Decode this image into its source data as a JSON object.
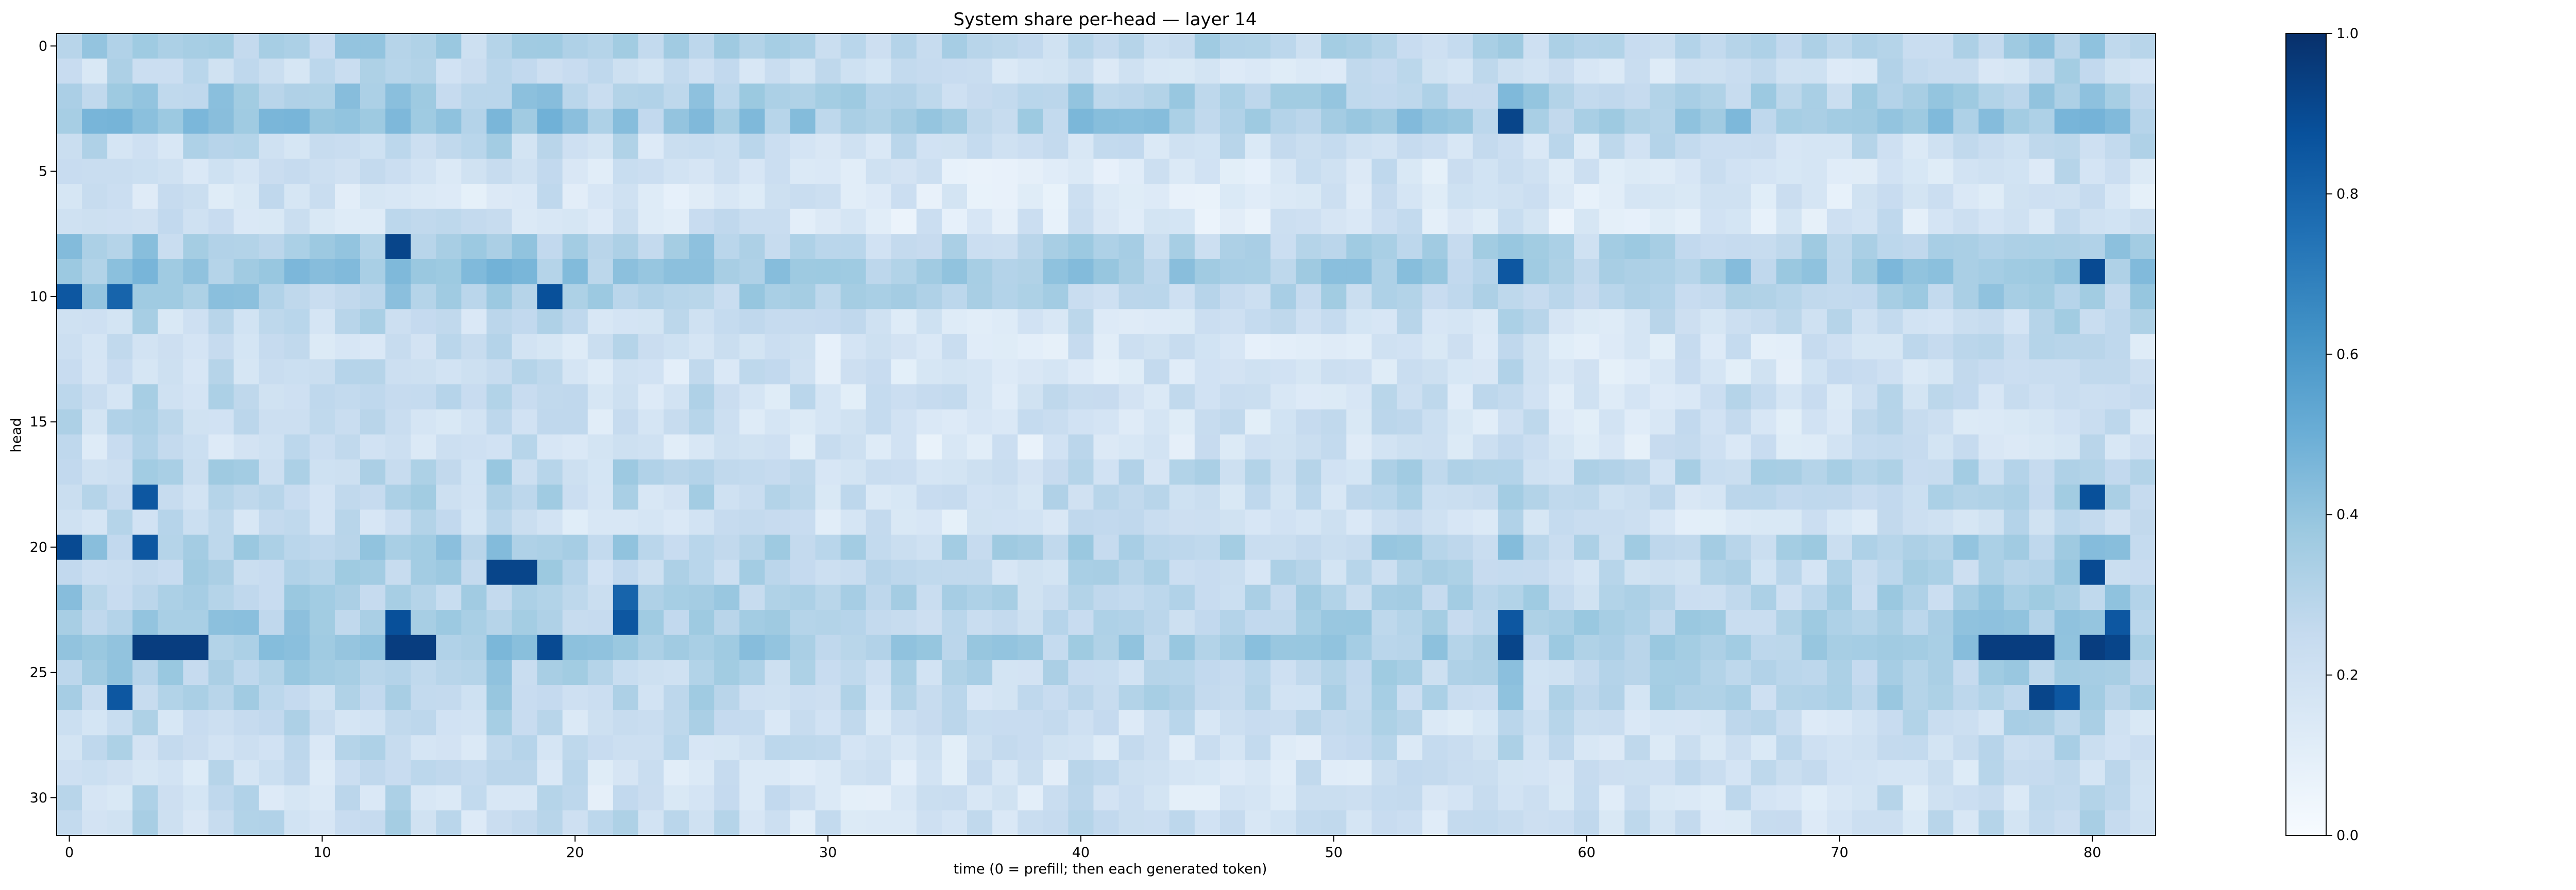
{
  "chart_data": {
    "type": "heatmap",
    "title": "System share per-head — layer 14",
    "xlabel": "time (0 = prefill; then each generated token)",
    "ylabel": "head",
    "n_rows": 32,
    "n_cols": 83,
    "x_ticks": [
      "0",
      "10",
      "20",
      "30",
      "40",
      "50",
      "60",
      "70",
      "80"
    ],
    "y_ticks": [
      "0",
      "5",
      "10",
      "15",
      "20",
      "25",
      "30"
    ],
    "colorbar": {
      "range": [
        0.0,
        1.0
      ],
      "ticks": [
        "0.0",
        "0.2",
        "0.4",
        "0.6",
        "0.8",
        "1.0"
      ],
      "colormap": "Blues"
    },
    "row_means": [
      0.36,
      0.18,
      0.4,
      0.5,
      0.22,
      0.12,
      0.08,
      0.1,
      0.38,
      0.48,
      0.38,
      0.22,
      0.14,
      0.14,
      0.2,
      0.16,
      0.14,
      0.3,
      0.26,
      0.16,
      0.4,
      0.3,
      0.36,
      0.4,
      0.48,
      0.34,
      0.32,
      0.22,
      0.18,
      0.16,
      0.14,
      0.18
    ],
    "col_means": [
      0.34,
      0.28,
      0.3,
      0.34,
      0.26,
      0.26,
      0.3,
      0.32,
      0.3,
      0.26,
      0.24,
      0.3,
      0.32,
      0.36,
      0.3,
      0.28,
      0.24,
      0.32,
      0.3,
      0.3,
      0.24,
      0.22,
      0.3,
      0.2,
      0.22,
      0.3,
      0.26,
      0.24,
      0.22,
      0.22,
      0.2,
      0.18,
      0.18,
      0.2,
      0.18,
      0.17,
      0.17,
      0.17,
      0.18,
      0.2,
      0.26,
      0.22,
      0.2,
      0.2,
      0.2,
      0.2,
      0.22,
      0.2,
      0.2,
      0.2,
      0.22,
      0.22,
      0.26,
      0.28,
      0.22,
      0.2,
      0.2,
      0.34,
      0.22,
      0.2,
      0.2,
      0.2,
      0.2,
      0.22,
      0.22,
      0.22,
      0.24,
      0.22,
      0.22,
      0.22,
      0.22,
      0.22,
      0.28,
      0.24,
      0.26,
      0.26,
      0.28,
      0.3,
      0.32,
      0.36,
      0.34,
      0.3,
      0.26
    ],
    "hotspots": [
      {
        "row": 3,
        "col": 57,
        "value": 0.92
      },
      {
        "row": 8,
        "col": 13,
        "value": 0.92
      },
      {
        "row": 9,
        "col": 57,
        "value": 0.85
      },
      {
        "row": 9,
        "col": 80,
        "value": 0.9
      },
      {
        "row": 10,
        "col": 0,
        "value": 0.85
      },
      {
        "row": 10,
        "col": 2,
        "value": 0.8
      },
      {
        "row": 10,
        "col": 19,
        "value": 0.88
      },
      {
        "row": 18,
        "col": 3,
        "value": 0.85
      },
      {
        "row": 18,
        "col": 80,
        "value": 0.88
      },
      {
        "row": 20,
        "col": 0,
        "value": 0.9
      },
      {
        "row": 20,
        "col": 3,
        "value": 0.85
      },
      {
        "row": 21,
        "col": 17,
        "value": 0.92
      },
      {
        "row": 21,
        "col": 18,
        "value": 0.92
      },
      {
        "row": 21,
        "col": 80,
        "value": 0.9
      },
      {
        "row": 22,
        "col": 22,
        "value": 0.8
      },
      {
        "row": 23,
        "col": 13,
        "value": 0.88
      },
      {
        "row": 23,
        "col": 22,
        "value": 0.85
      },
      {
        "row": 23,
        "col": 57,
        "value": 0.85
      },
      {
        "row": 23,
        "col": 81,
        "value": 0.85
      },
      {
        "row": 24,
        "col": 3,
        "value": 0.95
      },
      {
        "row": 24,
        "col": 4,
        "value": 0.95
      },
      {
        "row": 24,
        "col": 5,
        "value": 0.95
      },
      {
        "row": 24,
        "col": 13,
        "value": 0.95
      },
      {
        "row": 24,
        "col": 14,
        "value": 0.95
      },
      {
        "row": 24,
        "col": 19,
        "value": 0.9
      },
      {
        "row": 24,
        "col": 57,
        "value": 0.92
      },
      {
        "row": 24,
        "col": 76,
        "value": 0.95
      },
      {
        "row": 24,
        "col": 77,
        "value": 0.95
      },
      {
        "row": 24,
        "col": 78,
        "value": 0.95
      },
      {
        "row": 24,
        "col": 80,
        "value": 0.95
      },
      {
        "row": 24,
        "col": 81,
        "value": 0.92
      },
      {
        "row": 26,
        "col": 2,
        "value": 0.85
      },
      {
        "row": 26,
        "col": 78,
        "value": 0.92
      },
      {
        "row": 26,
        "col": 79,
        "value": 0.85
      }
    ]
  }
}
